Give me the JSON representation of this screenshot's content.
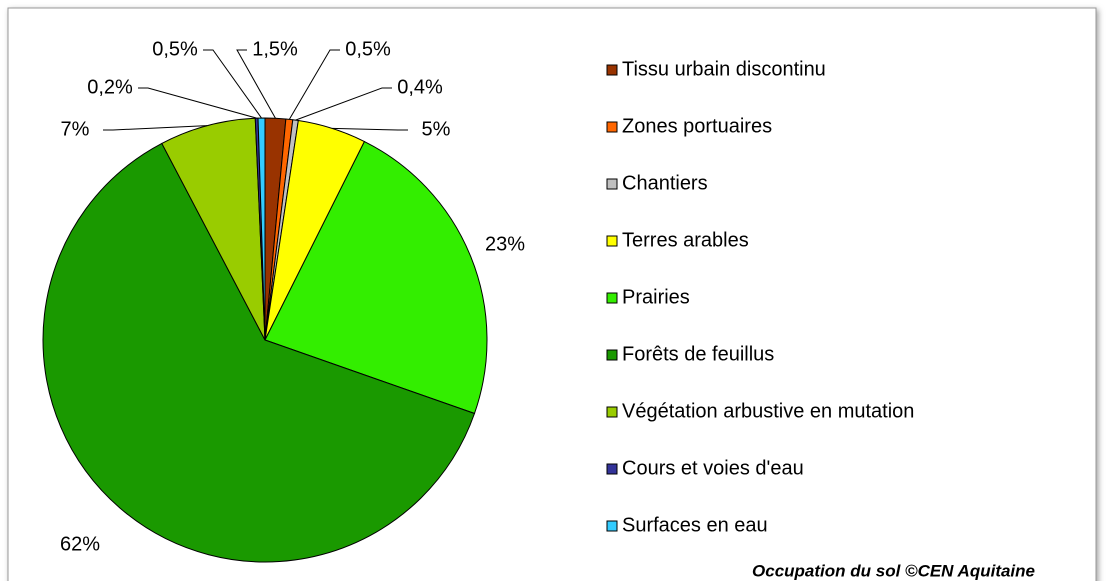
{
  "chart_data": {
    "type": "pie",
    "caption": "Occupation du sol ©CEN Aquitaine",
    "categories": [
      "Tissu urbain discontinu",
      "Zones portuaires",
      "Chantiers",
      "Terres arables",
      "Prairies",
      "Forêts de feuillus",
      "Végétation arbustive en mutation",
      "Cours et voies d'eau",
      "Surfaces en eau"
    ],
    "values": [
      1.5,
      0.5,
      0.4,
      5,
      23,
      62,
      7,
      0.2,
      0.5
    ],
    "value_labels": [
      "1,5%",
      "0,5%",
      "0,4%",
      "5%",
      "23%",
      "62%",
      "7%",
      "0,2%",
      "0,5%"
    ],
    "colors": [
      "#993300",
      "#ff6600",
      "#c0c0c0",
      "#ffff00",
      "#33ee00",
      "#1a9900",
      "#99cc00",
      "#333399",
      "#33ccff"
    ]
  }
}
